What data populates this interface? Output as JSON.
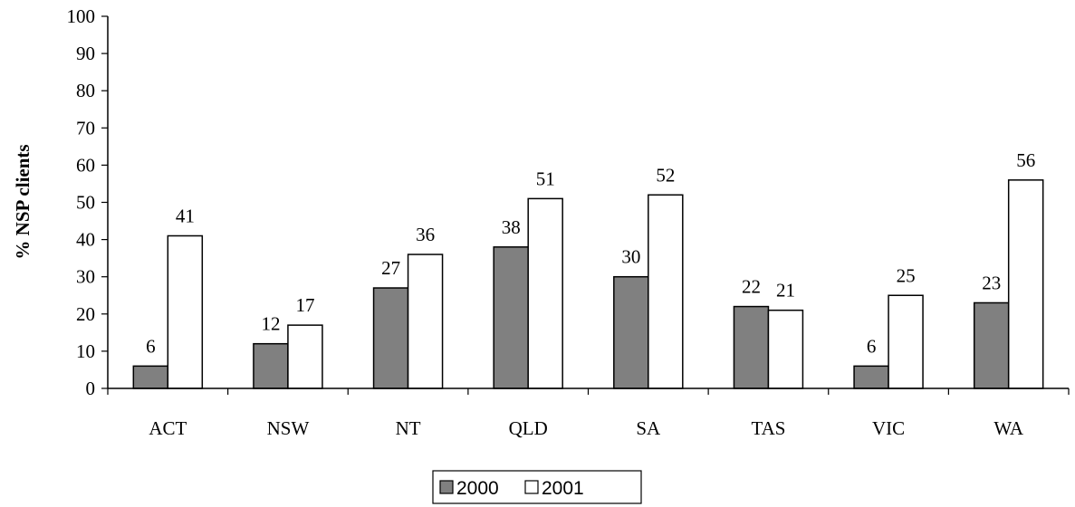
{
  "chart_data": {
    "type": "bar",
    "title": "",
    "xlabel": "",
    "ylabel": "% NSP clients",
    "ylim": [
      0,
      100
    ],
    "ytick_step": 10,
    "categories": [
      "ACT",
      "NSW",
      "NT",
      "QLD",
      "SA",
      "TAS",
      "VIC",
      "WA"
    ],
    "series": [
      {
        "name": "2000",
        "values": [
          6,
          12,
          27,
          38,
          30,
          22,
          6,
          23
        ],
        "color": "#808080"
      },
      {
        "name": "2001",
        "values": [
          41,
          17,
          36,
          51,
          52,
          21,
          25,
          56
        ],
        "color": "#ffffff"
      }
    ],
    "grid": false,
    "legend_position": "bottom-center",
    "data_labels": true
  }
}
